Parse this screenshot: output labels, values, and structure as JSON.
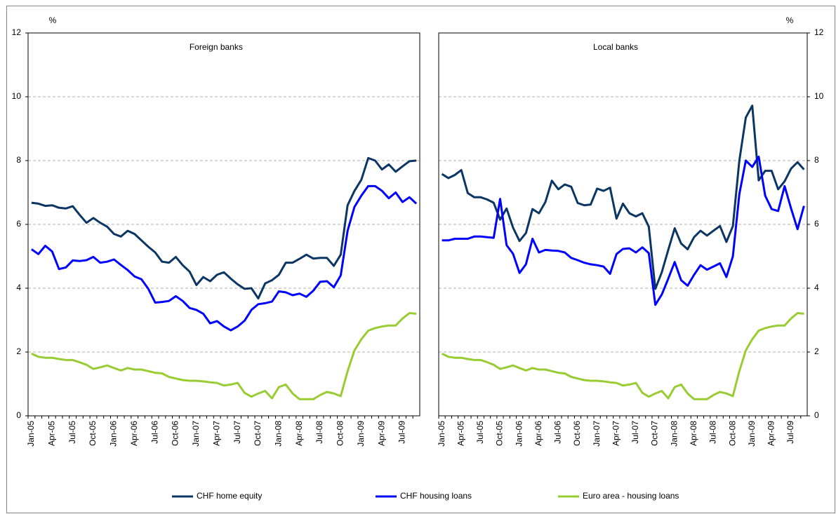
{
  "chart_data": [
    {
      "type": "line",
      "title": "Foreign banks",
      "y_label": "%",
      "y_axis_side": "left",
      "grid": true,
      "ylim": [
        0,
        12
      ],
      "yticks": [
        0,
        2,
        4,
        6,
        8,
        10,
        12
      ],
      "categories": [
        "Jan-05",
        null,
        null,
        "Apr-05",
        null,
        null,
        "Jul-05",
        null,
        null,
        "Oct-05",
        null,
        null,
        "Jan-06",
        null,
        null,
        "Apr-06",
        null,
        null,
        "Jul-06",
        null,
        null,
        "Oct-06",
        null,
        null,
        "Jan-07",
        null,
        null,
        "Apr-07",
        null,
        null,
        "Jul-07",
        null,
        null,
        "Oct-07",
        null,
        null,
        "Jan-08",
        null,
        null,
        "Apr-08",
        null,
        null,
        "Jul-08",
        null,
        null,
        "Oct-08",
        null,
        null,
        "Jan-09",
        null,
        null,
        "Apr-09",
        null,
        null,
        "Jul-09",
        null,
        null
      ],
      "series": [
        {
          "name": "CHF home equity",
          "color": "#0b3563",
          "values": [
            6.68,
            6.65,
            6.58,
            6.6,
            6.52,
            6.5,
            6.57,
            6.3,
            6.05,
            6.2,
            6.05,
            5.93,
            5.7,
            5.62,
            5.8,
            5.7,
            5.5,
            5.3,
            5.12,
            4.83,
            4.8,
            4.98,
            4.72,
            4.52,
            4.1,
            4.35,
            4.22,
            4.42,
            4.5,
            4.3,
            4.12,
            3.98,
            4.0,
            3.68,
            4.15,
            4.25,
            4.42,
            4.8,
            4.8,
            4.92,
            5.05,
            4.93,
            4.95,
            4.95,
            4.7,
            5.05,
            6.6,
            7.05,
            7.4,
            8.08,
            8.0,
            7.72,
            7.88,
            7.65,
            7.82,
            7.98,
            8.0
          ]
        },
        {
          "name": "CHF housing loans",
          "color": "#0000ff",
          "values": [
            5.22,
            5.07,
            5.33,
            5.15,
            4.6,
            4.65,
            4.87,
            4.85,
            4.88,
            4.98,
            4.8,
            4.83,
            4.9,
            4.73,
            4.57,
            4.37,
            4.28,
            3.98,
            3.55,
            3.57,
            3.6,
            3.75,
            3.6,
            3.38,
            3.32,
            3.2,
            2.9,
            2.97,
            2.8,
            2.68,
            2.8,
            2.98,
            3.32,
            3.5,
            3.53,
            3.58,
            3.9,
            3.87,
            3.78,
            3.83,
            3.73,
            3.92,
            4.2,
            4.22,
            4.03,
            4.4,
            5.8,
            6.55,
            6.9,
            7.2,
            7.2,
            7.05,
            6.82,
            7.0,
            6.7,
            6.85,
            6.65
          ]
        },
        {
          "name": "Euro area - housing loans",
          "color": "#99cc33",
          "values": [
            1.95,
            1.85,
            1.82,
            1.82,
            1.78,
            1.75,
            1.75,
            1.68,
            1.6,
            1.47,
            1.52,
            1.58,
            1.5,
            1.42,
            1.5,
            1.45,
            1.45,
            1.4,
            1.35,
            1.33,
            1.22,
            1.17,
            1.12,
            1.1,
            1.1,
            1.08,
            1.05,
            1.03,
            0.95,
            0.98,
            1.03,
            0.72,
            0.6,
            0.7,
            0.78,
            0.55,
            0.9,
            0.98,
            0.7,
            0.52,
            0.52,
            0.52,
            0.65,
            0.75,
            0.7,
            0.62,
            1.4,
            2.05,
            2.4,
            2.67,
            2.75,
            2.8,
            2.83,
            2.83,
            3.05,
            3.22,
            3.2
          ]
        }
      ]
    },
    {
      "type": "line",
      "title": "Local banks",
      "y_label": "%",
      "y_axis_side": "right",
      "grid": true,
      "ylim": [
        0,
        12
      ],
      "yticks": [
        0,
        2,
        4,
        6,
        8,
        10,
        12
      ],
      "categories": [
        "Jan-05",
        null,
        null,
        "Apr-05",
        null,
        null,
        "Jul-05",
        null,
        null,
        "Oct-05",
        null,
        null,
        "Jan-06",
        null,
        null,
        "Apr-06",
        null,
        null,
        "Jul-06",
        null,
        null,
        "Oct-06",
        null,
        null,
        "Jan-07",
        null,
        null,
        "Apr-07",
        null,
        null,
        "Jul-07",
        null,
        null,
        "Oct-07",
        null,
        null,
        "Jan-08",
        null,
        null,
        "Apr-08",
        null,
        null,
        "Jul-08",
        null,
        null,
        "Oct-08",
        null,
        null,
        "Jan-09",
        null,
        null,
        "Apr-09",
        null,
        null,
        "Jul-09",
        null,
        null
      ],
      "series": [
        {
          "color": "#0b3563",
          "values": [
            7.58,
            7.45,
            7.55,
            7.7,
            6.98,
            6.85,
            6.85,
            6.78,
            6.68,
            6.15,
            6.5,
            5.9,
            5.48,
            5.73,
            6.48,
            6.35,
            6.7,
            7.37,
            7.1,
            7.25,
            7.18,
            6.67,
            6.6,
            6.62,
            7.12,
            7.05,
            7.15,
            6.18,
            6.65,
            6.35,
            6.25,
            6.35,
            5.93,
            3.98,
            4.5,
            5.2,
            5.88,
            5.4,
            5.22,
            5.6,
            5.8,
            5.65,
            5.8,
            5.95,
            5.45,
            5.95,
            8.0,
            9.35,
            9.72,
            7.38,
            7.68,
            7.68,
            7.1,
            7.35,
            7.75,
            7.95,
            7.72
          ]
        },
        {
          "color": "#0000ff",
          "values": [
            5.5,
            5.5,
            5.55,
            5.55,
            5.55,
            5.62,
            5.62,
            5.6,
            5.58,
            6.8,
            5.35,
            5.08,
            4.48,
            4.75,
            5.55,
            5.12,
            5.2,
            5.18,
            5.17,
            5.12,
            4.95,
            4.88,
            4.8,
            4.75,
            4.72,
            4.68,
            4.45,
            5.07,
            5.23,
            5.25,
            5.12,
            5.28,
            5.1,
            3.48,
            3.8,
            4.3,
            4.82,
            4.25,
            4.08,
            4.42,
            4.72,
            4.58,
            4.68,
            4.78,
            4.35,
            5.0,
            6.95,
            8.0,
            7.8,
            8.12,
            6.9,
            6.48,
            6.42,
            7.2,
            6.5,
            5.85,
            6.58
          ]
        },
        {
          "color": "#99cc33",
          "values": [
            1.95,
            1.85,
            1.82,
            1.82,
            1.78,
            1.75,
            1.75,
            1.68,
            1.6,
            1.47,
            1.52,
            1.58,
            1.5,
            1.42,
            1.5,
            1.45,
            1.45,
            1.4,
            1.35,
            1.33,
            1.22,
            1.17,
            1.12,
            1.1,
            1.1,
            1.08,
            1.05,
            1.03,
            0.95,
            0.98,
            1.03,
            0.72,
            0.6,
            0.7,
            0.78,
            0.55,
            0.9,
            0.98,
            0.7,
            0.52,
            0.52,
            0.52,
            0.65,
            0.75,
            0.7,
            0.62,
            1.4,
            2.05,
            2.4,
            2.67,
            2.75,
            2.8,
            2.83,
            2.83,
            3.05,
            3.22,
            3.2
          ]
        }
      ]
    }
  ]
}
